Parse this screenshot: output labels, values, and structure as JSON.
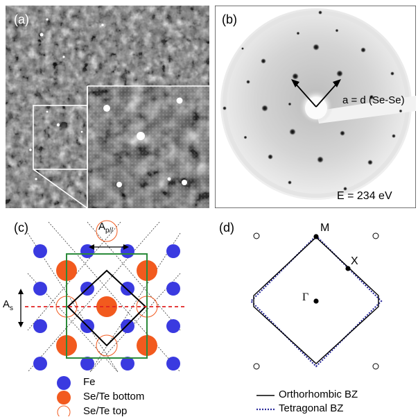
{
  "panels": {
    "a": {
      "label": "(a)"
    },
    "b": {
      "label": "(b)",
      "vector_label": "a = d (Se-Se)",
      "energy": "E = 234 eV"
    },
    "c": {
      "label": "(c)",
      "ap_label": "A",
      "ap_sub": "p//",
      "as_label": "A",
      "as_sub": "s",
      "legend": [
        {
          "text": "Fe",
          "color": "#3a3ae0"
        },
        {
          "text": "Se/Te bottom",
          "color": "#f25a1e"
        },
        {
          "text": "Se/Te top",
          "color": "#f25a1e"
        }
      ]
    },
    "d": {
      "label": "(d)",
      "points": {
        "M": "M",
        "X": "X",
        "G": "Γ"
      },
      "legend": [
        {
          "text": "Orthorhombic BZ"
        },
        {
          "text": "Tetragonal BZ"
        }
      ]
    }
  },
  "colors": {
    "fe": "#3a3ae0",
    "se": "#f25a1e",
    "green": "#2a8a3a",
    "red_dash": "#e02020",
    "tet": "#2a2a9a"
  }
}
